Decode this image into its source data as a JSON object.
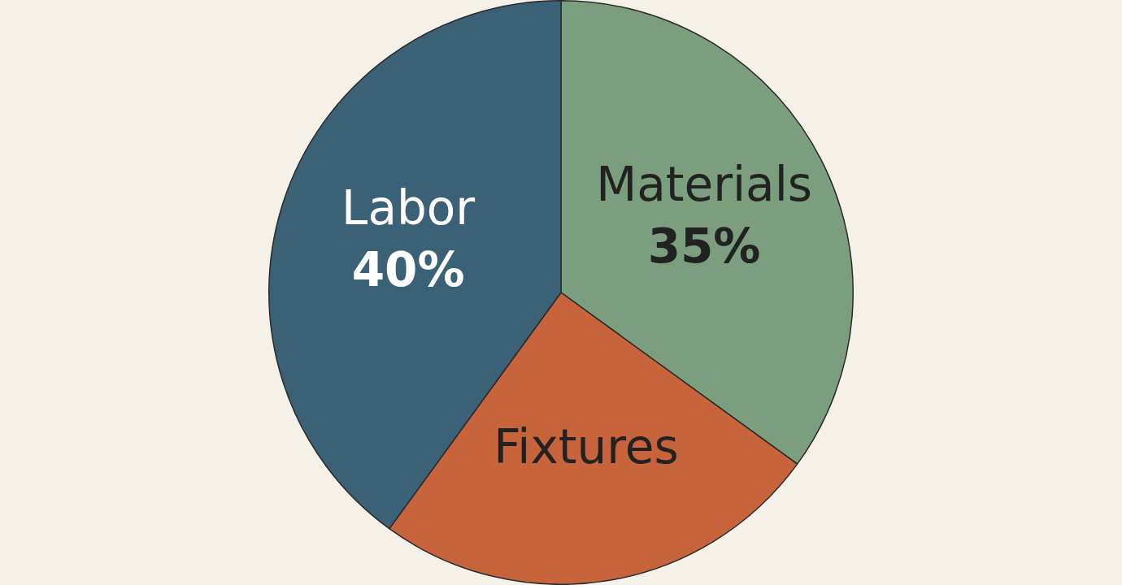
{
  "chart_data": {
    "type": "pie",
    "categories": [
      "Materials",
      "Fixtures",
      "Labor"
    ],
    "values": [
      35,
      25,
      40
    ],
    "colors": [
      "#7a9e7e",
      "#c8643c",
      "#3b6176"
    ],
    "value_labels": [
      "35%",
      null,
      "40%"
    ],
    "legend": false
  }
}
